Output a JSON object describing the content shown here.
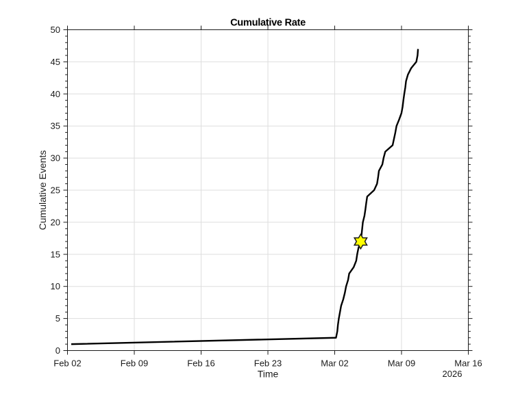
{
  "figure": {
    "background": "#ffffff"
  },
  "chart_data": {
    "type": "line",
    "title": "Cumulative Rate",
    "xlabel": "Time",
    "ylabel": "Cumulative Events",
    "x_unit": "days after Feb 02 00:00",
    "xlim": [
      0,
      42
    ],
    "ylim": [
      0,
      50
    ],
    "x_major_ticks": [
      0,
      7,
      14,
      21,
      28,
      35,
      42
    ],
    "x_tick_labels": [
      "Feb 02",
      "Feb 09",
      "Feb 16",
      "Feb 23",
      "Mar 02",
      "Mar 09",
      "Mar 16"
    ],
    "x_secondary_label": "2026",
    "y_major_ticks": [
      0,
      5,
      10,
      15,
      20,
      25,
      30,
      35,
      40,
      45,
      50
    ],
    "y_tick_labels": [
      "0",
      "5",
      "10",
      "15",
      "20",
      "25",
      "30",
      "35",
      "40",
      "45",
      "50"
    ],
    "y_minor_tick_step": 1,
    "grid": true,
    "legend": null,
    "series": [
      {
        "name": "cumulative-events",
        "color": "#000000",
        "line_width": 2.4,
        "x": [
          0.395,
          28.136,
          28.273,
          28.337,
          28.431,
          28.553,
          28.675,
          28.897,
          29.063,
          29.192,
          29.4,
          29.515,
          29.989,
          30.254,
          30.355,
          30.491,
          30.721,
          30.807,
          30.879,
          30.951,
          31.116,
          31.216,
          31.303,
          31.403,
          32.128,
          32.437,
          32.545,
          32.631,
          32.99,
          33.119,
          33.298,
          34.067,
          34.21,
          34.354,
          34.476,
          34.749,
          34.993,
          35.115,
          35.194,
          35.287,
          35.395,
          35.474,
          35.668,
          36.005,
          36.551,
          36.68,
          36.73
        ],
        "y": [
          1,
          2,
          3,
          4,
          5,
          6,
          7,
          8,
          9,
          10,
          11,
          12,
          13,
          14,
          15,
          16,
          17,
          18,
          19,
          20,
          21,
          22,
          23,
          24,
          25,
          26,
          27,
          28,
          29,
          30,
          31,
          32,
          33,
          34,
          35,
          36,
          37,
          38,
          39,
          40,
          41,
          42,
          43,
          44,
          45,
          46,
          47
        ]
      }
    ],
    "marker": {
      "shape": "hexagram",
      "x": 30.721,
      "y": 17,
      "fill": "#ffff00",
      "edge_color": "#1a1a1a",
      "outer_radius_px": 10.6,
      "inner_ratio": 0.577,
      "edge_width": 1.5
    }
  },
  "style": {
    "axis_color": "#1a1a1a",
    "grid_color": "#dedede",
    "background": "#ffffff",
    "axis_line_width": 1,
    "major_tick_len": 6,
    "minor_tick_len": 3.4
  }
}
